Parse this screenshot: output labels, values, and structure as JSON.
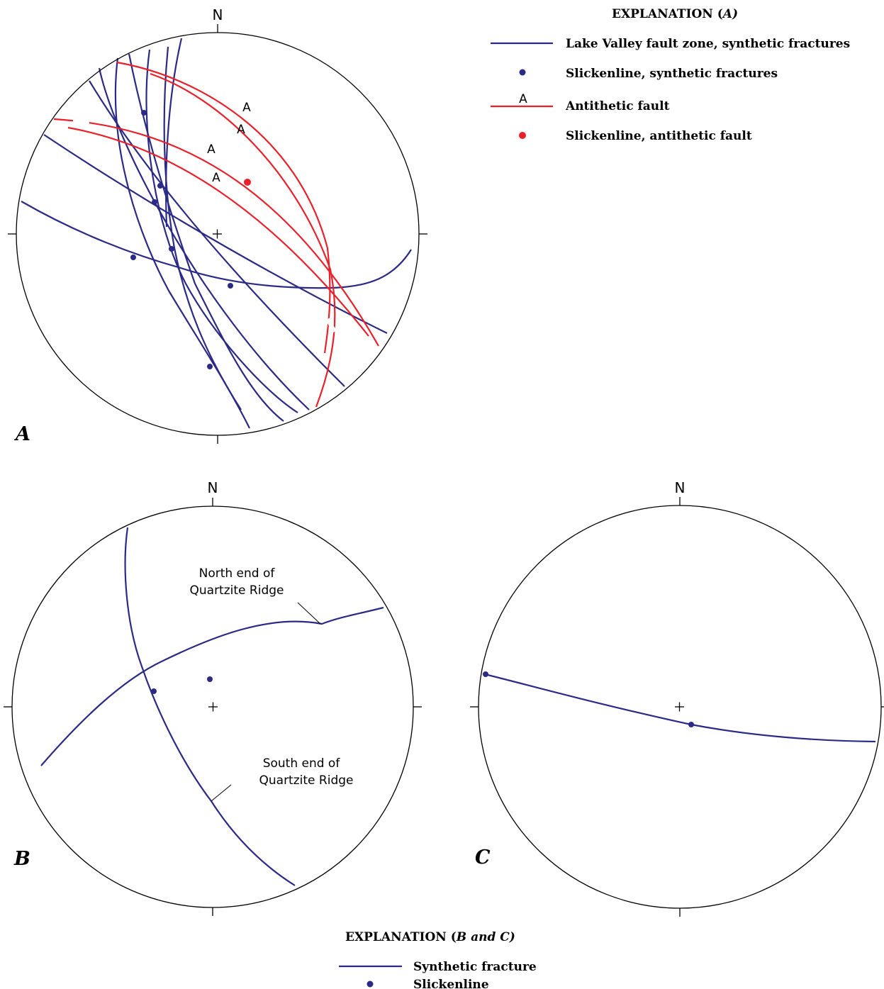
{
  "colors": {
    "synthetic": "#2b2a86",
    "antithetic": "#e8212a",
    "outline": "#000000"
  },
  "panel_a": {
    "letter": "A",
    "north": "N",
    "antithetic_tags": [
      "A",
      "A",
      "A",
      "A"
    ]
  },
  "legend_a": {
    "title": "EXPLANATION (",
    "title_em": "A)",
    "synthetic_line": "Lake Valley fault zone, synthetic fractures",
    "synthetic_dot": "Slickenline, synthetic fractures",
    "antithetic_tag": "A",
    "antithetic_line": "Antithetic fault",
    "antithetic_dot": "Slickenline, antithetic fault"
  },
  "panel_b": {
    "letter": "B",
    "north": "N",
    "north_label_1": "North end of",
    "north_label_2": "Quartzite Ridge",
    "south_label_1": "South end of",
    "south_label_2": "Quartzite Ridge"
  },
  "panel_c": {
    "letter": "C",
    "north": "N"
  },
  "legend_bc": {
    "title": "EXPLANATION (",
    "title_em": "B and C)",
    "fracture": "Synthetic fracture",
    "slickenline": "Slickenline"
  }
}
